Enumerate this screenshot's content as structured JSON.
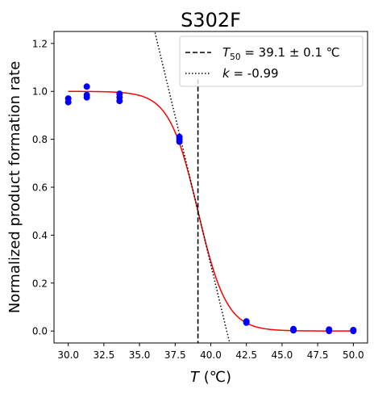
{
  "chart_data": {
    "type": "scatter",
    "title": "S302F",
    "xlabel_var": "T",
    "xlabel_unit": "(℃)",
    "ylabel": "Normalized product formation rate",
    "xlim": [
      29.0,
      51.0
    ],
    "ylim": [
      -0.05,
      1.25
    ],
    "xticks": [
      30.0,
      32.5,
      35.0,
      37.5,
      40.0,
      42.5,
      45.0,
      47.5,
      50.0
    ],
    "xtick_labels": [
      "30.0",
      "32.5",
      "35.0",
      "37.5",
      "40.0",
      "42.5",
      "45.0",
      "47.5",
      "50.0"
    ],
    "yticks": [
      0.0,
      0.2,
      0.4,
      0.6,
      0.8,
      1.0,
      1.2
    ],
    "ytick_labels": [
      "0.0",
      "0.2",
      "0.4",
      "0.6",
      "0.8",
      "1.0",
      "1.2"
    ],
    "grid": false,
    "legend_position": "top-right",
    "points": {
      "color": "#0000ff",
      "x": [
        30.0,
        30.0,
        31.3,
        31.3,
        31.3,
        33.6,
        33.6,
        33.6,
        37.8,
        37.8,
        37.8,
        42.5,
        42.5,
        45.8,
        45.8,
        48.3,
        48.3,
        50.0,
        50.0
      ],
      "y": [
        0.955,
        0.97,
        0.975,
        0.985,
        1.02,
        0.96,
        0.975,
        0.99,
        0.79,
        0.8,
        0.81,
        0.035,
        0.04,
        0.003,
        0.008,
        0.0,
        0.006,
        0.0,
        0.004
      ]
    },
    "fit": {
      "color": "#ff0000",
      "T50": 39.1,
      "k": -0.99,
      "upper": 1.0,
      "lower": 0.0
    },
    "t50_line": {
      "x": 39.1,
      "y_top": 1.05,
      "style": "dashed",
      "color": "#000000"
    },
    "slope_line": {
      "x0": 39.1,
      "y0": 0.5,
      "slope": -0.2475,
      "style": "dotted",
      "color": "#000000"
    },
    "legend": [
      {
        "style": "dashed",
        "sym": "T",
        "sub": "50",
        "text": " = 39.1 ± 0.1 ℃"
      },
      {
        "style": "dotted",
        "sym": "k",
        "sub": "",
        "text": " = -0.99"
      }
    ]
  }
}
